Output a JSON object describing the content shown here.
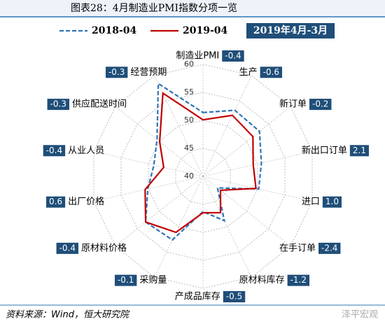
{
  "header": {
    "title": "图表28：4月制造业PMI指数分项一览"
  },
  "chart_data": {
    "type": "radar",
    "categories": [
      "制造业PMI",
      "生产",
      "新订单",
      "新出口订单",
      "进口",
      "在手订单",
      "原材料库存",
      "产成品库存",
      "采购量",
      "原材料价格",
      "出厂价格",
      "从业人员",
      "供应配送时间",
      "经营预期"
    ],
    "series": [
      {
        "name": "2018-04",
        "color": "#2e75b6",
        "dash": true,
        "values": [
          51.4,
          53.1,
          52.9,
          50.7,
          50.2,
          43.3,
          48.8,
          46.3,
          52.6,
          53.1,
          50.1,
          49.0,
          50.5,
          58.4
        ]
      },
      {
        "name": "2019-04",
        "color": "#c00000",
        "dash": false,
        "values": [
          50.1,
          52.1,
          51.4,
          49.2,
          49.7,
          44.0,
          47.2,
          46.5,
          51.1,
          53.1,
          50.6,
          47.2,
          49.9,
          56.5
        ]
      }
    ],
    "annotation": {
      "name": "2019年4月-3月",
      "color": "#1f4e79",
      "values": [
        -0.4,
        -0.6,
        -0.2,
        2.1,
        1.0,
        -2.4,
        -1.2,
        -0.5,
        -0.1,
        -0.4,
        0.6,
        -0.4,
        -0.3,
        -0.3
      ],
      "value_labels": [
        "-0.4",
        "-0.6",
        "-0.2",
        "2.1",
        "1.0",
        "-2.4",
        "-1.2",
        "-0.5",
        "-0.1",
        "-0.4",
        "0.6",
        "-0.4",
        "-0.3",
        "-0.3"
      ]
    },
    "rlim": [
      40,
      60
    ],
    "rticks": [
      40,
      45,
      50,
      55,
      60
    ],
    "grid": true
  },
  "footer": {
    "source": "资料来源：Wind，恒大研究院",
    "watermark": "泽平宏观"
  }
}
